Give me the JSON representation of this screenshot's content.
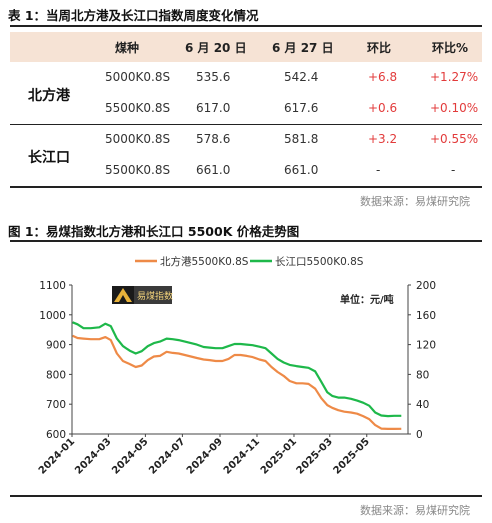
{
  "table_caption": "表 1：当周北方港及长江口指数周度变化情况",
  "table": {
    "headers": [
      "煤种",
      "6 月 20 日",
      "6 月 27 日",
      "环比",
      "环比%"
    ],
    "groups": [
      {
        "name": "北方港",
        "rows": [
          {
            "coal": "5000K0.8S",
            "jun20": "535.6",
            "jun27": "542.4",
            "chg": "+6.8",
            "chg_pct": "+1.27%"
          },
          {
            "coal": "5500K0.8S",
            "jun20": "617.0",
            "jun27": "617.6",
            "chg": "+0.6",
            "chg_pct": "+0.10%"
          }
        ]
      },
      {
        "name": "长江口",
        "rows": [
          {
            "coal": "5000K0.8S",
            "jun20": "578.6",
            "jun27": "581.8",
            "chg": "+3.2",
            "chg_pct": "+0.55%"
          },
          {
            "coal": "5500K0.8S",
            "jun20": "661.0",
            "jun27": "661.0",
            "chg": "-",
            "chg_pct": "-"
          }
        ]
      }
    ]
  },
  "table_source": "数据来源：易煤研究院",
  "figure_caption": "图 1：易煤指数北方港和长江口 5500K 价格走势图",
  "figure_source": "数据来源：易煤研究院",
  "logo_text": "易煤指数",
  "colors": {
    "beifang": "#ee8a47",
    "changjiang": "#1eb84a",
    "header_bg": "#f6e3d5",
    "positive": "#e23b3b"
  },
  "chart_data": {
    "type": "line",
    "legend": [
      "北方港5500K0.8S",
      "长江口5500K0.8S"
    ],
    "legend_position": "top-center",
    "unit_label": "单位：元/吨",
    "x_ticks": [
      "2024-01",
      "2024-03",
      "2024-05",
      "2024-07",
      "2024-09",
      "2024-11",
      "2025-01",
      "2025-03",
      "2025-05"
    ],
    "y_left": {
      "min": 600,
      "max": 1100,
      "ticks": [
        600,
        700,
        800,
        900,
        1000,
        1100
      ]
    },
    "y_right": {
      "min": 0,
      "max": 200,
      "ticks": [
        0,
        40,
        80,
        120,
        160,
        200
      ]
    },
    "grid": false,
    "series": [
      {
        "name": "北方港5500K0.8S",
        "axis": "left",
        "points": [
          [
            "2024-01-02",
            930
          ],
          [
            "2024-01-10",
            922
          ],
          [
            "2024-01-20",
            920
          ],
          [
            "2024-02-01",
            918
          ],
          [
            "2024-02-15",
            918
          ],
          [
            "2024-02-25",
            925
          ],
          [
            "2024-03-05",
            915
          ],
          [
            "2024-03-15",
            870
          ],
          [
            "2024-03-25",
            845
          ],
          [
            "2024-04-05",
            835
          ],
          [
            "2024-04-15",
            825
          ],
          [
            "2024-04-25",
            830
          ],
          [
            "2024-05-05",
            848
          ],
          [
            "2024-05-15",
            860
          ],
          [
            "2024-05-25",
            862
          ],
          [
            "2024-06-05",
            876
          ],
          [
            "2024-06-15",
            872
          ],
          [
            "2024-06-25",
            870
          ],
          [
            "2024-07-05",
            865
          ],
          [
            "2024-07-15",
            860
          ],
          [
            "2024-07-25",
            855
          ],
          [
            "2024-08-05",
            850
          ],
          [
            "2024-08-15",
            848
          ],
          [
            "2024-08-25",
            845
          ],
          [
            "2024-09-05",
            845
          ],
          [
            "2024-09-15",
            852
          ],
          [
            "2024-09-25",
            865
          ],
          [
            "2024-10-05",
            865
          ],
          [
            "2024-10-15",
            862
          ],
          [
            "2024-10-25",
            858
          ],
          [
            "2024-11-05",
            850
          ],
          [
            "2024-11-15",
            845
          ],
          [
            "2024-11-25",
            825
          ],
          [
            "2024-12-05",
            808
          ],
          [
            "2024-12-15",
            795
          ],
          [
            "2024-12-25",
            778
          ],
          [
            "2025-01-05",
            770
          ],
          [
            "2025-01-15",
            770
          ],
          [
            "2025-01-25",
            768
          ],
          [
            "2025-02-05",
            752
          ],
          [
            "2025-02-15",
            720
          ],
          [
            "2025-02-25",
            697
          ],
          [
            "2025-03-05",
            688
          ],
          [
            "2025-03-15",
            680
          ],
          [
            "2025-03-25",
            675
          ],
          [
            "2025-04-05",
            672
          ],
          [
            "2025-04-15",
            668
          ],
          [
            "2025-04-25",
            660
          ],
          [
            "2025-05-05",
            650
          ],
          [
            "2025-05-15",
            630
          ],
          [
            "2025-05-25",
            618
          ],
          [
            "2025-06-05",
            617
          ],
          [
            "2025-06-15",
            617
          ],
          [
            "2025-06-27",
            617.6
          ]
        ]
      },
      {
        "name": "长江口5500K0.8S",
        "axis": "left",
        "points": [
          [
            "2024-01-02",
            975
          ],
          [
            "2024-01-10",
            968
          ],
          [
            "2024-01-20",
            955
          ],
          [
            "2024-02-01",
            955
          ],
          [
            "2024-02-15",
            958
          ],
          [
            "2024-02-25",
            970
          ],
          [
            "2024-03-05",
            962
          ],
          [
            "2024-03-15",
            920
          ],
          [
            "2024-03-25",
            895
          ],
          [
            "2024-04-05",
            880
          ],
          [
            "2024-04-15",
            870
          ],
          [
            "2024-04-25",
            878
          ],
          [
            "2024-05-05",
            895
          ],
          [
            "2024-05-15",
            905
          ],
          [
            "2024-05-25",
            910
          ],
          [
            "2024-06-05",
            920
          ],
          [
            "2024-06-15",
            918
          ],
          [
            "2024-06-25",
            915
          ],
          [
            "2024-07-05",
            910
          ],
          [
            "2024-07-15",
            905
          ],
          [
            "2024-07-25",
            900
          ],
          [
            "2024-08-05",
            892
          ],
          [
            "2024-08-15",
            890
          ],
          [
            "2024-08-25",
            888
          ],
          [
            "2024-09-05",
            888
          ],
          [
            "2024-09-15",
            895
          ],
          [
            "2024-09-25",
            902
          ],
          [
            "2024-10-05",
            902
          ],
          [
            "2024-10-15",
            900
          ],
          [
            "2024-10-25",
            898
          ],
          [
            "2024-11-05",
            893
          ],
          [
            "2024-11-15",
            888
          ],
          [
            "2024-11-25",
            870
          ],
          [
            "2024-12-05",
            852
          ],
          [
            "2024-12-15",
            840
          ],
          [
            "2024-12-25",
            832
          ],
          [
            "2025-01-05",
            828
          ],
          [
            "2025-01-15",
            825
          ],
          [
            "2025-01-25",
            822
          ],
          [
            "2025-02-05",
            810
          ],
          [
            "2025-02-15",
            775
          ],
          [
            "2025-02-25",
            740
          ],
          [
            "2025-03-05",
            728
          ],
          [
            "2025-03-15",
            722
          ],
          [
            "2025-03-25",
            722
          ],
          [
            "2025-04-05",
            718
          ],
          [
            "2025-04-15",
            712
          ],
          [
            "2025-04-25",
            705
          ],
          [
            "2025-05-05",
            695
          ],
          [
            "2025-05-15",
            672
          ],
          [
            "2025-05-25",
            662
          ],
          [
            "2025-06-05",
            660
          ],
          [
            "2025-06-15",
            661
          ],
          [
            "2025-06-27",
            661
          ]
        ]
      },
      {
        "name": "",
        "axis": "right",
        "points": []
      }
    ]
  }
}
